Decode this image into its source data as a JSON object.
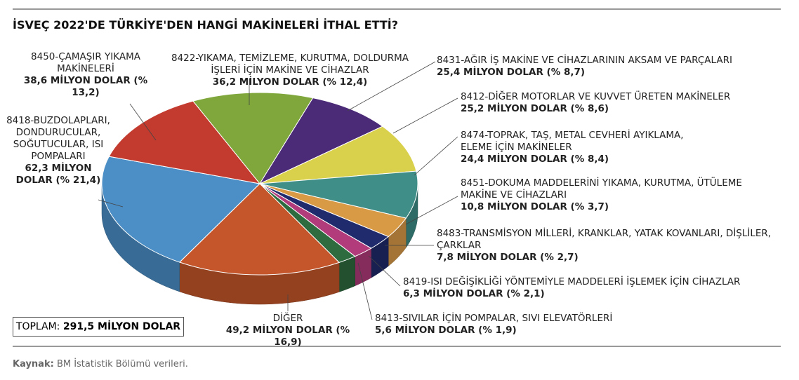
{
  "chart_data": {
    "type": "pie",
    "title": "İSVEÇ 2022'DE TÜRKİYE'DEN HANGİ MAKİNELERİ İTHAL ETTİ?",
    "categories": [
      "8422-YIKAMA, TEMİZLEME, KURUTMA, DOLDURMA İŞLERİ İÇİN MAKİNE VE CİHAZLAR",
      "8431-AĞIR İŞ MAKİNE VE CİHAZLARININ AKSAM VE PARÇALARI",
      "8412-DİĞER MOTORLAR VE KUVVET ÜRETEN MAKİNELER",
      "8474-TOPRAK, TAŞ, METAL CEVHERİ AYIKLAMA, ELEME İÇİN MAKİNELER",
      "8451-DOKUMA MADDELERİNİ YIKAMA, KURUTMA, ÜTÜLEME MAKİNE VE CİHAZLARI",
      "8483-TRANSMİSYON MİLLERİ, KRANKLAR, YATAK KOVANLARI, DİŞLİLER, ÇARKLAR",
      "8419-ISI DEĞİŞİKLİĞİ YÖNTEMİYLE MADDELERİ İŞLEMEK İÇİN CİHAZLAR",
      "8413-SIVILAR İÇİN POMPALAR, SIVI ELEVATÖRLERİ",
      "DİĞER",
      "8418-BUZDOLAPLARI, DONDURUCULAR, SOĞUTUCULAR, ISI POMPALARI",
      "8450-ÇAMAŞIR YIKAMA MAKİNELERİ"
    ],
    "values": [
      36.2,
      25.4,
      25.2,
      24.4,
      10.8,
      7.8,
      6.3,
      5.6,
      49.2,
      62.3,
      38.6
    ],
    "value_labels": [
      "36,2 MİLYON DOLAR (% 12,4)",
      "25,4 MİLYON DOLAR (% 8,7)",
      "25,2 MİLYON DOLAR (% 8,6)",
      "24,4 MİLYON DOLAR (% 8,4)",
      "10,8 MİLYON DOLAR (% 3,7)",
      "7,8 MİLYON DOLAR (% 2,7)",
      "6,3 MİLYON DOLAR (% 2,1)",
      "5,6 MİLYON DOLAR (% 1,9)",
      "49,2 MİLYON DOLAR (% 16,9)",
      "62,3 MİLYON DOLAR (% 21,4)",
      "38,6 MİLYON DOLAR (% 13,2)"
    ],
    "colors": [
      "#7fa73c",
      "#4b2a78",
      "#d9d04c",
      "#3f8f88",
      "#d99a46",
      "#1f2b6c",
      "#b13b7b",
      "#2e6b3f",
      "#c5562b",
      "#4b8fc6",
      "#c33b2f"
    ],
    "total_title": "TOPLAM:",
    "total": 291.5,
    "total_label": "291,5 MİLYON DOLAR",
    "source_title": "Kaynak:",
    "source": "BM İstatistik Bölümü verileri."
  }
}
